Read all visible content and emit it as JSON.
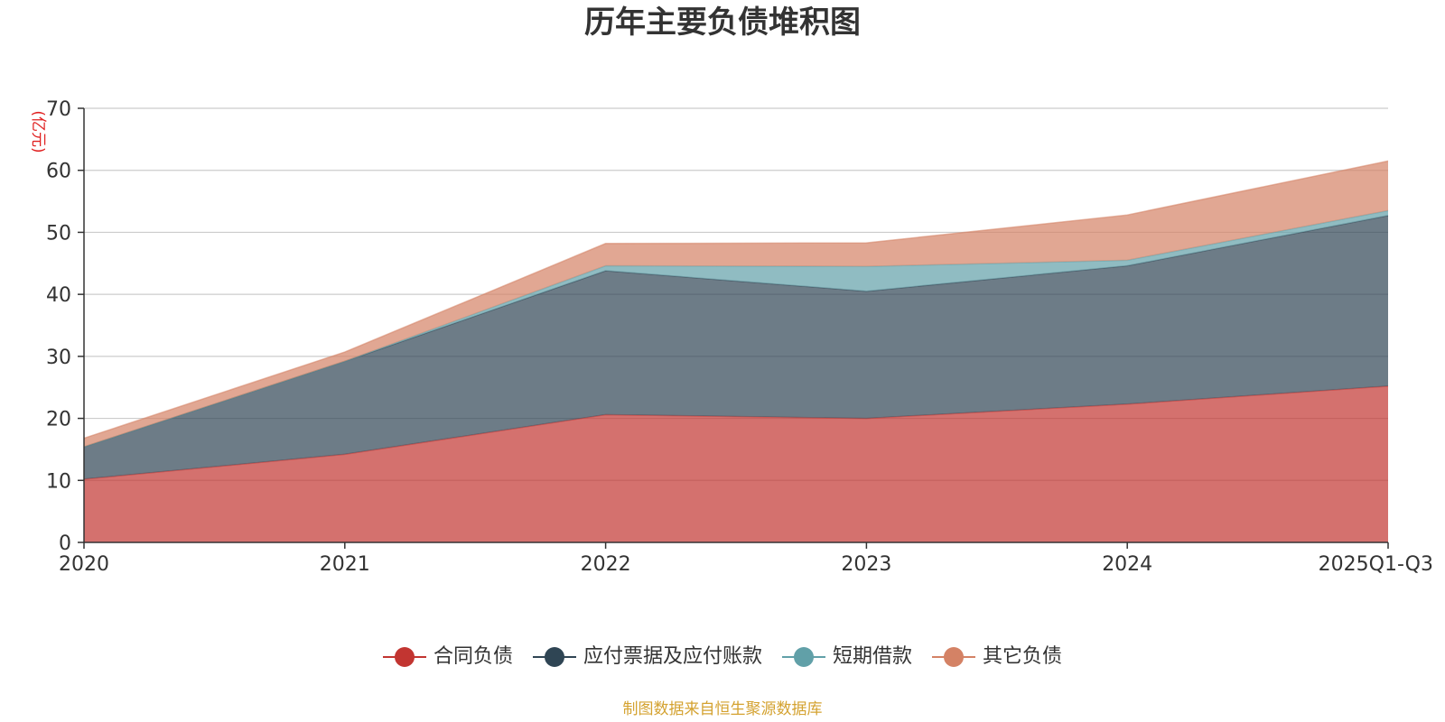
{
  "chart_data": {
    "type": "area",
    "stacked": true,
    "title": "历年主要负债堆积图",
    "unit_label": "(亿元)",
    "categories": [
      "2020",
      "2021",
      "2022",
      "2023",
      "2024",
      "2025Q1-Q3"
    ],
    "ylim": [
      0,
      70
    ],
    "yticks": [
      0,
      10,
      20,
      30,
      40,
      50,
      60,
      70
    ],
    "grid": true,
    "legend_position": "bottom-center",
    "series": [
      {
        "name": "合同负债",
        "color": "#c23531",
        "values": [
          10.2,
          14.2,
          20.6,
          20.0,
          22.3,
          25.2
        ]
      },
      {
        "name": "应付票据及应付账款",
        "color": "#2f4554",
        "values": [
          5.2,
          15.0,
          23.2,
          20.5,
          22.3,
          27.5
        ]
      },
      {
        "name": "短期借款",
        "color": "#61a0a8",
        "values": [
          0.0,
          0.0,
          0.8,
          4.0,
          0.9,
          0.8
        ]
      },
      {
        "name": "其它负债",
        "color": "#d48265",
        "values": [
          1.4,
          1.5,
          3.6,
          3.8,
          7.3,
          8.0
        ]
      }
    ],
    "source": "制图数据来自恒生聚源数据库"
  }
}
